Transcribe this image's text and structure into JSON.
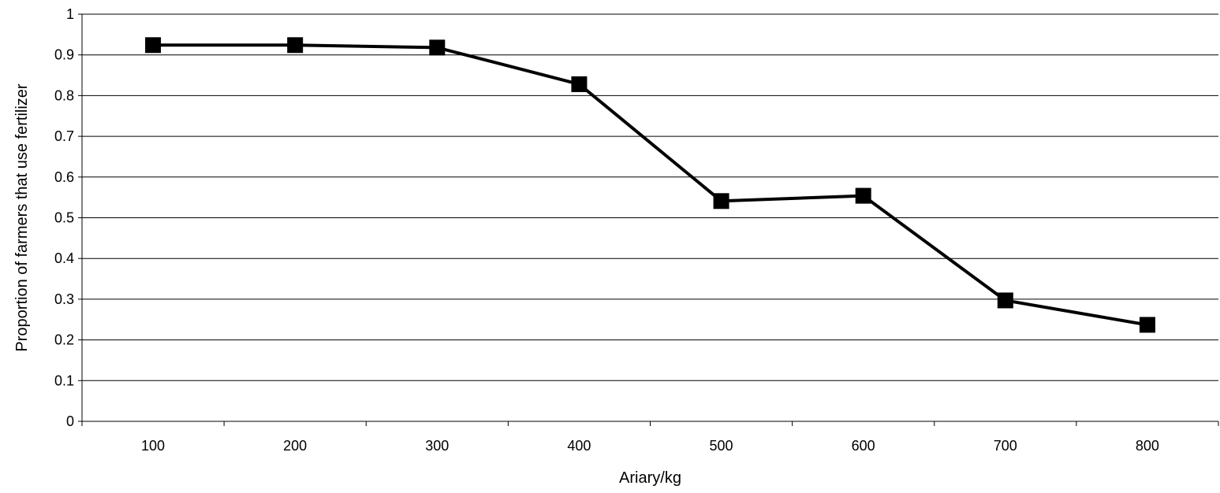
{
  "chart_data": {
    "type": "line",
    "title": "",
    "xlabel": "Ariary/kg",
    "ylabel": "Proportion of farmers that use fertilizer",
    "categories": [
      "100",
      "200",
      "300",
      "400",
      "500",
      "600",
      "700",
      "800"
    ],
    "series": [
      {
        "values": [
          0.924,
          0.924,
          0.918,
          0.828,
          0.541,
          0.554,
          0.297,
          0.237
        ]
      }
    ],
    "ylim": [
      0,
      1
    ],
    "yticks": [
      "0",
      "0.1",
      "0.2",
      "0.3",
      "0.4",
      "0.5",
      "0.6",
      "0.7",
      "0.8",
      "0.9",
      "1"
    ],
    "grid": true,
    "legend": "none",
    "colors": {
      "line": "#000000",
      "marker": "#000000",
      "grid": "#000000"
    },
    "marker": "square"
  }
}
